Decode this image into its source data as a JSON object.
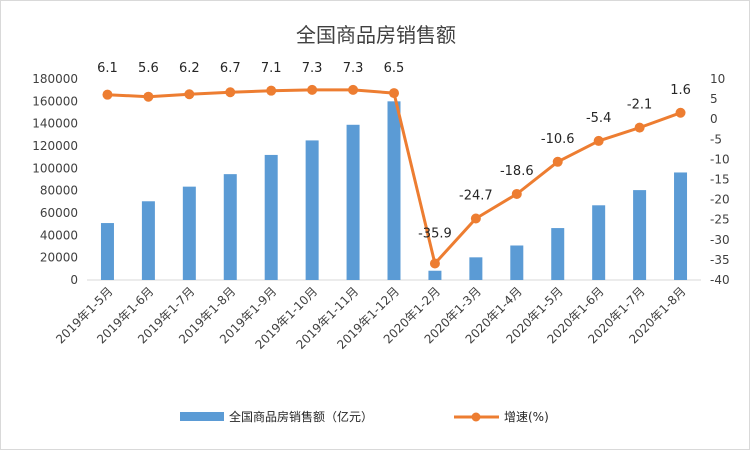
{
  "chart_data": {
    "type": "bar+line",
    "title": "全国商品房销售额",
    "categories": [
      "2019年1-5月",
      "2019年1-6月",
      "2019年1-7月",
      "2019年1-8月",
      "2019年1-9月",
      "2019年1-10月",
      "2019年1-11月",
      "2019年1-12月",
      "2020年1-2月",
      "2020年1-3月",
      "2020年1-4月",
      "2020年1-5月",
      "2020年1-6月",
      "2020年1-7月",
      "2020年1-8月"
    ],
    "series": [
      {
        "name": "全国商品房销售额（亿元）",
        "type": "bar",
        "axis": "left",
        "color": "#5B9BD5",
        "values": [
          51000,
          70500,
          83600,
          94800,
          112000,
          125000,
          139000,
          160000,
          8300,
          20300,
          30900,
          46500,
          66900,
          80500,
          96300
        ]
      },
      {
        "name": "增速(%)",
        "type": "line",
        "axis": "right",
        "color": "#ED7D31",
        "values": [
          6.1,
          5.6,
          6.2,
          6.7,
          7.1,
          7.3,
          7.3,
          6.5,
          -35.9,
          -24.7,
          -18.6,
          -10.6,
          -5.4,
          -2.1,
          1.6
        ],
        "data_labels": [
          "6.1",
          "5.6",
          "6.2",
          "6.7",
          "7.1",
          "7.3",
          "7.3",
          "6.5",
          "-35.9",
          "-24.7",
          "-18.6",
          "-10.6",
          "-5.4",
          "-2.1",
          "1.6"
        ]
      }
    ],
    "left_axis": {
      "ylim": [
        0,
        180000
      ],
      "ticks": [
        "0",
        "20000",
        "40000",
        "60000",
        "80000",
        "100000",
        "120000",
        "140000",
        "160000",
        "180000"
      ]
    },
    "right_axis": {
      "ylim": [
        -40,
        10
      ],
      "ticks": [
        "-40",
        "-35",
        "-30",
        "-25",
        "-20",
        "-15",
        "-10",
        "-5",
        "0",
        "5",
        "10"
      ]
    },
    "legend_position": "bottom",
    "grid": false
  }
}
